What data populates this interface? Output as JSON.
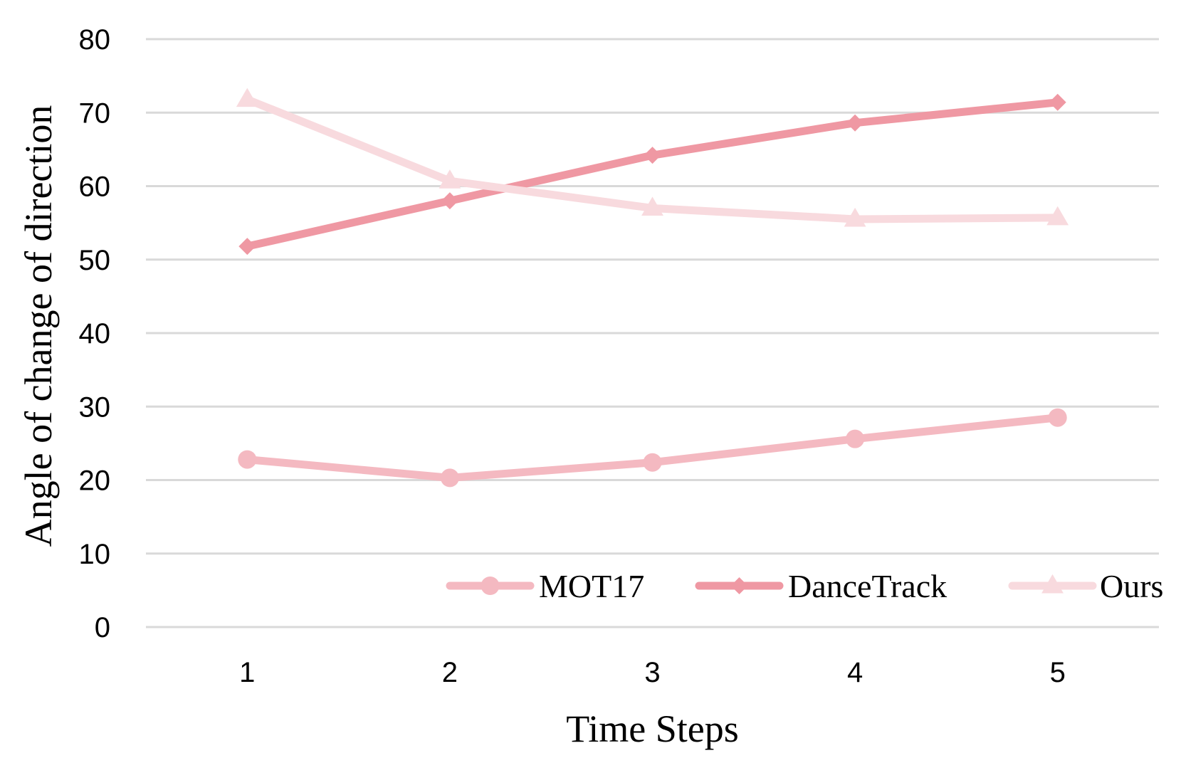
{
  "chart_data": {
    "type": "line",
    "title": "",
    "xlabel": "Time Steps",
    "ylabel": "Angle of change of direction",
    "categories": [
      "1",
      "2",
      "3",
      "4",
      "5"
    ],
    "y_ticks": [
      "0",
      "10",
      "20",
      "30",
      "40",
      "50",
      "60",
      "70",
      "80"
    ],
    "ylim": [
      0,
      80
    ],
    "grid": true,
    "legend_position": "bottom-right",
    "series": [
      {
        "name": "MOT17",
        "values": [
          22.8,
          20.3,
          22.4,
          25.6,
          28.5
        ],
        "color": "#f4b9c1",
        "marker": "circle"
      },
      {
        "name": "DanceTrack",
        "values": [
          51.8,
          58.0,
          64.2,
          68.6,
          71.4
        ],
        "color": "#ef98a3",
        "marker": "diamond"
      },
      {
        "name": "Ours",
        "values": [
          71.8,
          60.7,
          57.0,
          55.5,
          55.7
        ],
        "color": "#f8dade",
        "marker": "triangle"
      }
    ]
  }
}
